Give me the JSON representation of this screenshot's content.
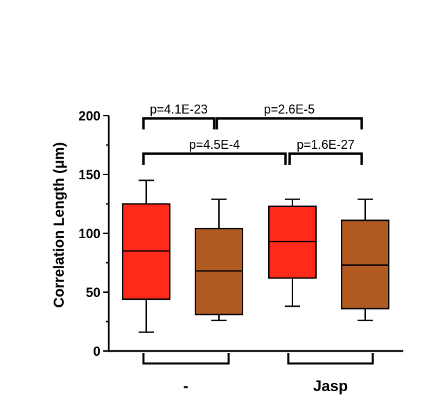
{
  "chart_data": {
    "type": "box",
    "ylabel": "Correlation Length (μm)",
    "ylim": [
      0,
      200
    ],
    "yticks": [
      "0",
      "50",
      "100",
      "150",
      "200"
    ],
    "groups": [
      "-",
      "Jasp"
    ],
    "boxes": [
      {
        "group": "-",
        "color": "#ff2a1a",
        "min": 16,
        "q1": 44,
        "median": 85,
        "q3": 125,
        "max": 145
      },
      {
        "group": "-",
        "color": "#b05a22",
        "min": 26,
        "q1": 31,
        "median": 68,
        "q3": 104,
        "max": 129
      },
      {
        "group": "Jasp",
        "color": "#ff2a1a",
        "min": 38,
        "q1": 62,
        "median": 93,
        "q3": 123,
        "max": 129
      },
      {
        "group": "Jasp",
        "color": "#b05a22",
        "min": 26,
        "q1": 36,
        "median": 73,
        "q3": 111,
        "max": 129
      }
    ],
    "comparisons": [
      {
        "label": "p=4.1E-23",
        "from": 0,
        "to": 1
      },
      {
        "label": "p=2.6E-5",
        "from": 1,
        "to": 3
      },
      {
        "label": "p=4.5E-4",
        "from": 0,
        "to": 2
      },
      {
        "label": "p=1.6E-27",
        "from": 2,
        "to": 3
      }
    ]
  }
}
